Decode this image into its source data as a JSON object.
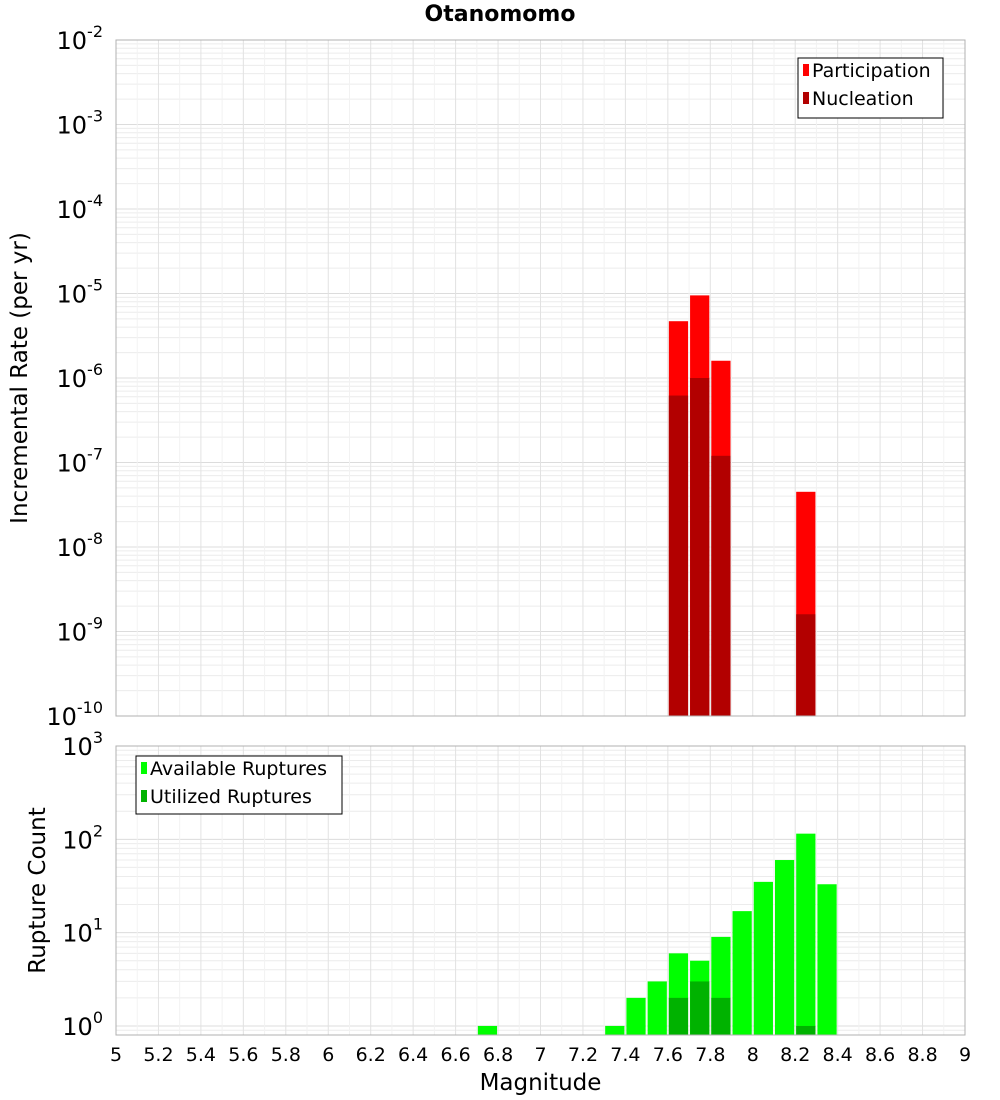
{
  "chart_data": [
    {
      "type": "bar",
      "title": "Otanomomo",
      "xlabel": "Magnitude",
      "ylabel": "Incremental Rate (per yr)",
      "xlim": [
        5,
        9
      ],
      "ylim": [
        1e-10,
        0.01
      ],
      "yscale": "log",
      "x_ticks": [
        5,
        5.2,
        5.4,
        5.6,
        5.8,
        6,
        6.2,
        6.4,
        6.6,
        6.8,
        7,
        7.2,
        7.4,
        7.6,
        7.8,
        8,
        8.2,
        8.4,
        8.6,
        8.8,
        9
      ],
      "x_tick_labels": [
        "5",
        "5.2",
        "5.4",
        "5.6",
        "5.8",
        "6",
        "6.2",
        "6.4",
        "6.6",
        "6.8",
        "7",
        "7.2",
        "7.4",
        "7.6",
        "7.8",
        "8",
        "8.2",
        "8.4",
        "8.6",
        "8.8",
        "9"
      ],
      "y_tick_exponents": [
        -2,
        -3,
        -4,
        -5,
        -6,
        -7,
        -8,
        -9,
        -10
      ],
      "grid": true,
      "legend_position": "top-right",
      "series": [
        {
          "name": "Participation",
          "color": "#ff0000",
          "x": [
            7.65,
            7.75,
            7.85,
            8.25
          ],
          "values": [
            4.7e-06,
            9.5e-06,
            1.6e-06,
            4.5e-08
          ]
        },
        {
          "name": "Nucleation",
          "color": "#b20000",
          "x": [
            7.65,
            7.75,
            7.85,
            8.25
          ],
          "values": [
            6.2e-07,
            1e-06,
            1.2e-07,
            1.6e-09
          ]
        }
      ]
    },
    {
      "type": "bar",
      "title": "",
      "xlabel": "Magnitude",
      "ylabel": "Rupture Count",
      "xlim": [
        5,
        9
      ],
      "ylim": [
        0.8,
        1000
      ],
      "yscale": "log",
      "y_tick_exponents": [
        3,
        2,
        1,
        0
      ],
      "grid": true,
      "legend_position": "top-left",
      "series": [
        {
          "name": "Available Ruptures",
          "color": "#00ff00",
          "x": [
            6.75,
            7.35,
            7.45,
            7.55,
            7.65,
            7.75,
            7.85,
            7.95,
            8.05,
            8.15,
            8.25,
            8.35
          ],
          "values": [
            1,
            1,
            2,
            3,
            6,
            5,
            9,
            17,
            35,
            60,
            115,
            33
          ]
        },
        {
          "name": "Utilized Ruptures",
          "color": "#00b200",
          "x": [
            7.65,
            7.75,
            7.85,
            8.25
          ],
          "values": [
            2,
            3,
            2,
            1
          ]
        }
      ]
    }
  ]
}
